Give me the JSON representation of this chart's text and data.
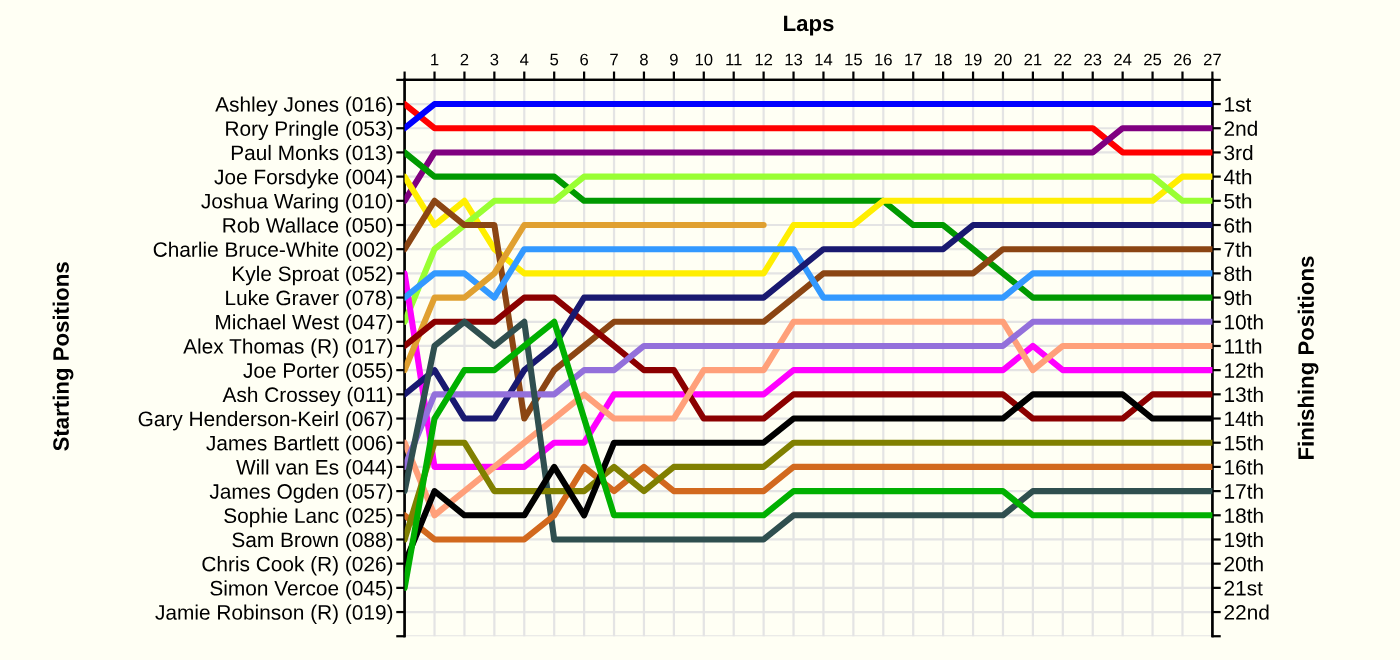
{
  "chart_data": {
    "type": "line",
    "xlabel": "Laps",
    "annotations": [
      "Starting Positions"
    ],
    "y2label": "Finishing Positions",
    "x": [
      0,
      1,
      2,
      3,
      4,
      5,
      6,
      7,
      8,
      9,
      10,
      11,
      12,
      13,
      14,
      15,
      16,
      17,
      18,
      19,
      20,
      21,
      22,
      23,
      24,
      25,
      26,
      27
    ],
    "xlim": [
      0,
      27
    ],
    "xticks": [
      {
        "value": 0,
        "label": null
      },
      1,
      2,
      3,
      4,
      5,
      6,
      7,
      8,
      9,
      10,
      11,
      12,
      13,
      14,
      15,
      16,
      17,
      18,
      19,
      20,
      21,
      22,
      23,
      24,
      25,
      26,
      27
    ],
    "y_categories": [
      "Ashley Jones (016)",
      "Rory Pringle (053)",
      "Paul Monks (013)",
      "Joe Forsdyke (004)",
      "Joshua Waring (010)",
      "Rob Wallace (050)",
      "Charlie Bruce-White (002)",
      "Kyle Sproat (052)",
      "Luke Graver (078)",
      "Michael West (047)",
      "Alex Thomas (R) (017)",
      "Joe Porter (055)",
      "Ash Crossey (011)",
      "Gary Henderson-Keirl (067)",
      "James Bartlett (006)",
      "Will van Es (044)",
      "James Ogden (057)",
      "Sophie Lanc (025)",
      "Sam Brown (088)",
      "Chris Cook (R) (026)",
      "Simon Vercoe (045)",
      "Jamie Robinson (R) (019)"
    ],
    "y2lim": [
      23,
      0
    ],
    "y2ticks": [
      {
        "value": 0,
        "label": null
      },
      {
        "value": 1,
        "label": "1st"
      },
      {
        "value": 2,
        "label": "2nd"
      },
      {
        "value": 3,
        "label": "3rd"
      },
      {
        "value": 4,
        "label": "4th"
      },
      {
        "value": 5,
        "label": "5th"
      },
      {
        "value": 6,
        "label": "6th"
      },
      {
        "value": 7,
        "label": "7th"
      },
      {
        "value": 8,
        "label": "8th"
      },
      {
        "value": 9,
        "label": "9th"
      },
      {
        "value": 10,
        "label": "10th"
      },
      {
        "value": 11,
        "label": "11th"
      },
      {
        "value": 12,
        "label": "12th"
      },
      {
        "value": 13,
        "label": "13th"
      },
      {
        "value": 14,
        "label": "14th"
      },
      {
        "value": 15,
        "label": "15th"
      },
      {
        "value": 16,
        "label": "16th"
      },
      {
        "value": 17,
        "label": "17th"
      },
      {
        "value": 18,
        "label": "18th"
      },
      {
        "value": 19,
        "label": "19th"
      },
      {
        "value": 20,
        "label": "20th"
      },
      {
        "value": 21,
        "label": "21st"
      },
      {
        "value": 22,
        "label": "22nd"
      },
      {
        "value": 23,
        "label": null
      }
    ],
    "grid": true,
    "legend": false,
    "line_style": "solid",
    "marker": "none",
    "series": [
      {
        "axis": "y2",
        "color": "#ff0000",
        "values": [
          1,
          2,
          2,
          2,
          2,
          2,
          2,
          2,
          2,
          2,
          2,
          2,
          2,
          2,
          2,
          2,
          2,
          2,
          2,
          2,
          2,
          2,
          2,
          2,
          3,
          3,
          3,
          3
        ]
      },
      {
        "axis": "y2",
        "color": "#0000ff",
        "values": [
          2,
          1,
          1,
          1,
          1,
          1,
          1,
          1,
          1,
          1,
          1,
          1,
          1,
          1,
          1,
          1,
          1,
          1,
          1,
          1,
          1,
          1,
          1,
          1,
          1,
          1,
          1,
          1
        ]
      },
      {
        "axis": "y2",
        "color": "#800080",
        "values": [
          5,
          3,
          3,
          3,
          3,
          3,
          3,
          3,
          3,
          3,
          3,
          3,
          3,
          3,
          3,
          3,
          3,
          3,
          3,
          3,
          3,
          3,
          3,
          3,
          2,
          2,
          2,
          2
        ]
      },
      {
        "axis": "y2",
        "color": "#009900",
        "values": [
          3,
          4,
          4,
          4,
          4,
          4,
          5,
          5,
          5,
          5,
          5,
          5,
          5,
          5,
          5,
          5,
          5,
          6,
          6,
          7,
          8,
          9,
          9,
          9,
          9,
          9,
          9,
          9
        ]
      },
      {
        "axis": "y2",
        "color": "#ffee00",
        "values": [
          4,
          6,
          5,
          7,
          8,
          8,
          8,
          8,
          8,
          8,
          8,
          8,
          8,
          6,
          6,
          6,
          5,
          5,
          5,
          5,
          5,
          5,
          5,
          5,
          5,
          5,
          4,
          4
        ]
      },
      {
        "axis": "y2",
        "color": "#99ff33",
        "values": [
          10,
          7,
          6,
          5,
          5,
          5,
          4,
          4,
          4,
          4,
          4,
          4,
          4,
          4,
          4,
          4,
          4,
          4,
          4,
          4,
          4,
          4,
          4,
          4,
          4,
          4,
          5,
          5
        ]
      },
      {
        "axis": "y2",
        "color": "#8b4513",
        "values": [
          7,
          5,
          6,
          6,
          14,
          12,
          11,
          10,
          10,
          10,
          10,
          10,
          10,
          9,
          8,
          8,
          8,
          8,
          8,
          8,
          7,
          7,
          7,
          7,
          7,
          7,
          7,
          7
        ]
      },
      {
        "axis": "y2",
        "color": "#ff00ff",
        "values": [
          8,
          16,
          16,
          16,
          16,
          15,
          15,
          13,
          13,
          13,
          13,
          13,
          13,
          12,
          12,
          12,
          12,
          12,
          12,
          12,
          12,
          11,
          12,
          12,
          12,
          12,
          12,
          12
        ]
      },
      {
        "axis": "y2",
        "color": "#3399ff",
        "values": [
          9,
          8,
          8,
          9,
          7,
          7,
          7,
          7,
          7,
          7,
          7,
          7,
          7,
          7,
          9,
          9,
          9,
          9,
          9,
          9,
          9,
          8,
          8,
          8,
          8,
          8,
          8,
          8
        ]
      },
      {
        "axis": "y2",
        "color": "#e0a030",
        "values": [
          12,
          9,
          9,
          8,
          6,
          6,
          6,
          6,
          6,
          6,
          6,
          6,
          6,
          null,
          null,
          null,
          null,
          null,
          null,
          null,
          null,
          null,
          null,
          null,
          null,
          null,
          null,
          null
        ]
      },
      {
        "axis": "y2",
        "color": "#8b0000",
        "values": [
          11,
          10,
          10,
          10,
          9,
          9,
          10,
          11,
          12,
          12,
          14,
          14,
          14,
          13,
          13,
          13,
          13,
          13,
          13,
          13,
          13,
          14,
          14,
          14,
          14,
          13,
          13,
          13
        ]
      },
      {
        "axis": "y2",
        "color": "#191970",
        "values": [
          13,
          12,
          14,
          14,
          12,
          11,
          9,
          9,
          9,
          9,
          9,
          9,
          9,
          8,
          7,
          7,
          7,
          7,
          7,
          6,
          6,
          6,
          6,
          6,
          6,
          6,
          6,
          6
        ]
      },
      {
        "axis": "y2",
        "color": "#ffa07a",
        "values": [
          15,
          18,
          17,
          16,
          15,
          14,
          13,
          14,
          14,
          14,
          12,
          12,
          12,
          10,
          10,
          10,
          10,
          10,
          10,
          10,
          10,
          12,
          11,
          11,
          11,
          11,
          11,
          11
        ]
      },
      {
        "axis": "y2",
        "color": "#9370db",
        "values": [
          16,
          13,
          13,
          13,
          13,
          13,
          12,
          12,
          11,
          11,
          11,
          11,
          11,
          11,
          11,
          11,
          11,
          11,
          11,
          11,
          11,
          10,
          10,
          10,
          10,
          10,
          10,
          10
        ]
      },
      {
        "axis": "y2",
        "color": "#2f4f4f",
        "values": [
          17,
          11,
          10,
          11,
          10,
          19,
          19,
          19,
          19,
          19,
          19,
          19,
          19,
          18,
          18,
          18,
          18,
          18,
          18,
          18,
          18,
          17,
          17,
          17,
          17,
          17,
          17,
          17
        ]
      },
      {
        "axis": "y2",
        "color": "#d2691e",
        "values": [
          18,
          19,
          19,
          19,
          19,
          18,
          16,
          17,
          16,
          17,
          17,
          17,
          17,
          16,
          16,
          16,
          16,
          16,
          16,
          16,
          16,
          16,
          16,
          16,
          16,
          16,
          16,
          16
        ]
      },
      {
        "axis": "y2",
        "color": "#808000",
        "values": [
          19,
          15,
          15,
          17,
          17,
          17,
          17,
          16,
          17,
          16,
          16,
          16,
          16,
          15,
          15,
          15,
          15,
          15,
          15,
          15,
          15,
          15,
          15,
          15,
          15,
          15,
          15,
          15
        ]
      },
      {
        "axis": "y2",
        "color": "#000000",
        "values": [
          20,
          17,
          18,
          18,
          18,
          16,
          18,
          15,
          15,
          15,
          15,
          15,
          15,
          14,
          14,
          14,
          14,
          14,
          14,
          14,
          14,
          13,
          13,
          13,
          13,
          14,
          14,
          14
        ]
      },
      {
        "axis": "y2",
        "color": "#00b000",
        "values": [
          21,
          14,
          12,
          12,
          11,
          10,
          14,
          18,
          18,
          18,
          18,
          18,
          18,
          17,
          17,
          17,
          17,
          17,
          17,
          17,
          17,
          18,
          18,
          18,
          18,
          18,
          18,
          18
        ]
      }
    ]
  }
}
